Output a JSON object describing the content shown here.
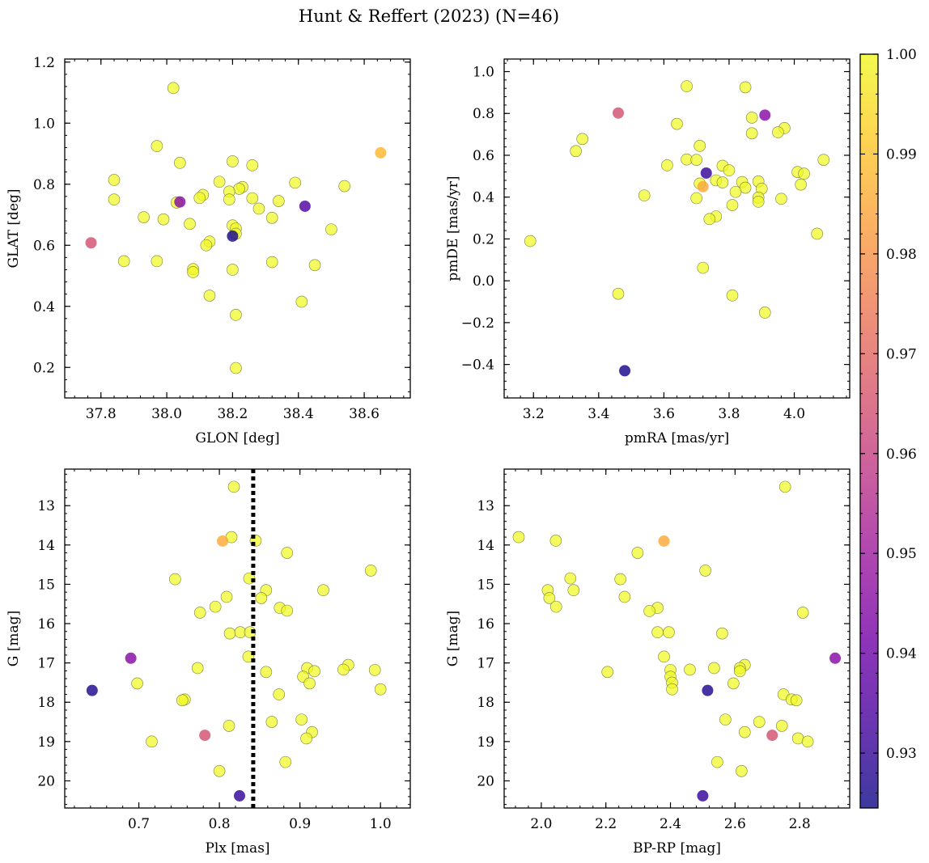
{
  "figure": {
    "title": "Hunt & Reffert (2023) (N=46)"
  },
  "colorbar": {
    "min": 0.9245,
    "max": 1.0,
    "ticks": [
      0.93,
      0.94,
      0.95,
      0.96,
      0.97,
      0.98,
      0.99,
      1.0
    ],
    "tick_labels": [
      "0.93",
      "0.94",
      "0.95",
      "0.96",
      "0.97",
      "0.98",
      "0.99",
      "1.00"
    ],
    "colormap": "plasma",
    "colors": [
      "#0d0887",
      "#46039f",
      "#7201a8",
      "#9c179e",
      "#bd3786",
      "#d8576b",
      "#ed7953",
      "#fb9f3a",
      "#fdca26",
      "#f0f921"
    ]
  },
  "chart_data": [
    {
      "type": "scatter",
      "name": "glon-glat",
      "xlabel": "GLON [deg]",
      "ylabel": "GLAT [deg]",
      "xlim": [
        37.69,
        38.74
      ],
      "ylim": [
        0.1,
        1.21
      ],
      "invert_y": false,
      "xticks": [
        37.8,
        38.0,
        38.2,
        38.4,
        38.6
      ],
      "xtick_labels": [
        "37.8",
        "38.0",
        "38.2",
        "38.4",
        "38.6"
      ],
      "yticks": [
        0.2,
        0.4,
        0.6,
        0.8,
        1.0,
        1.2
      ],
      "ytick_labels": [
        "0.2",
        "0.4",
        "0.6",
        "0.8",
        "1.0",
        "1.2"
      ],
      "points": [
        {
          "x": 38.02,
          "y": 1.115,
          "c": 1.0
        },
        {
          "x": 37.97,
          "y": 0.925,
          "c": 1.0
        },
        {
          "x": 38.04,
          "y": 0.87,
          "c": 1.0
        },
        {
          "x": 38.2,
          "y": 0.875,
          "c": 1.0
        },
        {
          "x": 38.26,
          "y": 0.862,
          "c": 1.0
        },
        {
          "x": 37.84,
          "y": 0.814,
          "c": 1.0
        },
        {
          "x": 38.16,
          "y": 0.808,
          "c": 1.0
        },
        {
          "x": 38.39,
          "y": 0.805,
          "c": 1.0
        },
        {
          "x": 38.54,
          "y": 0.794,
          "c": 1.0
        },
        {
          "x": 38.23,
          "y": 0.791,
          "c": 1.0
        },
        {
          "x": 38.22,
          "y": 0.785,
          "c": 1.0
        },
        {
          "x": 38.19,
          "y": 0.776,
          "c": 1.0
        },
        {
          "x": 38.11,
          "y": 0.765,
          "c": 1.0
        },
        {
          "x": 38.1,
          "y": 0.755,
          "c": 1.0
        },
        {
          "x": 38.26,
          "y": 0.754,
          "c": 1.0
        },
        {
          "x": 38.19,
          "y": 0.75,
          "c": 1.0
        },
        {
          "x": 37.84,
          "y": 0.75,
          "c": 1.0
        },
        {
          "x": 38.34,
          "y": 0.745,
          "c": 1.0
        },
        {
          "x": 38.03,
          "y": 0.74,
          "c": 1.0
        },
        {
          "x": 38.28,
          "y": 0.72,
          "c": 1.0
        },
        {
          "x": 37.93,
          "y": 0.692,
          "c": 1.0
        },
        {
          "x": 38.32,
          "y": 0.69,
          "c": 1.0
        },
        {
          "x": 37.99,
          "y": 0.685,
          "c": 1.0
        },
        {
          "x": 38.07,
          "y": 0.67,
          "c": 1.0
        },
        {
          "x": 38.2,
          "y": 0.665,
          "c": 1.0
        },
        {
          "x": 38.21,
          "y": 0.655,
          "c": 1.0
        },
        {
          "x": 38.5,
          "y": 0.652,
          "c": 1.0
        },
        {
          "x": 38.21,
          "y": 0.638,
          "c": 1.0
        },
        {
          "x": 38.13,
          "y": 0.612,
          "c": 1.0
        },
        {
          "x": 38.12,
          "y": 0.6,
          "c": 1.0
        },
        {
          "x": 37.87,
          "y": 0.548,
          "c": 1.0
        },
        {
          "x": 37.97,
          "y": 0.548,
          "c": 1.0
        },
        {
          "x": 38.32,
          "y": 0.545,
          "c": 1.0
        },
        {
          "x": 38.45,
          "y": 0.535,
          "c": 1.0
        },
        {
          "x": 38.08,
          "y": 0.522,
          "c": 1.0
        },
        {
          "x": 38.2,
          "y": 0.52,
          "c": 1.0
        },
        {
          "x": 38.08,
          "y": 0.512,
          "c": 1.0
        },
        {
          "x": 38.13,
          "y": 0.435,
          "c": 1.0
        },
        {
          "x": 38.41,
          "y": 0.415,
          "c": 1.0
        },
        {
          "x": 38.21,
          "y": 0.372,
          "c": 1.0
        },
        {
          "x": 38.21,
          "y": 0.198,
          "c": 1.0
        },
        {
          "x": 38.65,
          "y": 0.903,
          "c": 0.988
        },
        {
          "x": 37.77,
          "y": 0.608,
          "c": 0.965
        },
        {
          "x": 38.04,
          "y": 0.742,
          "c": 0.945
        },
        {
          "x": 38.42,
          "y": 0.728,
          "c": 0.935
        },
        {
          "x": 38.2,
          "y": 0.63,
          "c": 0.926
        }
      ]
    },
    {
      "type": "scatter",
      "name": "pmra-pmde",
      "xlabel": "pmRA [mas/yr]",
      "ylabel": "pmDE [mas/yr]",
      "xlim": [
        3.11,
        4.17
      ],
      "ylim": [
        -0.56,
        1.06
      ],
      "invert_y": false,
      "xticks": [
        3.2,
        3.4,
        3.6,
        3.8,
        4.0
      ],
      "xtick_labels": [
        "3.2",
        "3.4",
        "3.6",
        "3.8",
        "4.0"
      ],
      "yticks": [
        -0.4,
        -0.2,
        0.0,
        0.2,
        0.4,
        0.6,
        0.8,
        1.0
      ],
      "ytick_labels": [
        "−0.4",
        "−0.2",
        "0.0",
        "0.2",
        "0.4",
        "0.6",
        "0.8",
        "1.0"
      ],
      "points": [
        {
          "x": 3.67,
          "y": 0.93,
          "c": 1.0
        },
        {
          "x": 3.85,
          "y": 0.925,
          "c": 1.0
        },
        {
          "x": 3.87,
          "y": 0.78,
          "c": 1.0
        },
        {
          "x": 3.64,
          "y": 0.75,
          "c": 1.0
        },
        {
          "x": 3.97,
          "y": 0.73,
          "c": 1.0
        },
        {
          "x": 3.95,
          "y": 0.71,
          "c": 1.0
        },
        {
          "x": 3.87,
          "y": 0.705,
          "c": 1.0
        },
        {
          "x": 3.35,
          "y": 0.678,
          "c": 1.0
        },
        {
          "x": 3.71,
          "y": 0.645,
          "c": 1.0
        },
        {
          "x": 3.33,
          "y": 0.62,
          "c": 1.0
        },
        {
          "x": 3.67,
          "y": 0.58,
          "c": 1.0
        },
        {
          "x": 3.7,
          "y": 0.578,
          "c": 1.0
        },
        {
          "x": 4.09,
          "y": 0.578,
          "c": 1.0
        },
        {
          "x": 3.61,
          "y": 0.552,
          "c": 1.0
        },
        {
          "x": 3.78,
          "y": 0.55,
          "c": 1.0
        },
        {
          "x": 3.8,
          "y": 0.528,
          "c": 1.0
        },
        {
          "x": 4.01,
          "y": 0.52,
          "c": 1.0
        },
        {
          "x": 4.03,
          "y": 0.512,
          "c": 1.0
        },
        {
          "x": 3.76,
          "y": 0.48,
          "c": 1.0
        },
        {
          "x": 3.89,
          "y": 0.475,
          "c": 1.0
        },
        {
          "x": 3.84,
          "y": 0.472,
          "c": 1.0
        },
        {
          "x": 3.78,
          "y": 0.47,
          "c": 1.0
        },
        {
          "x": 3.71,
          "y": 0.465,
          "c": 1.0
        },
        {
          "x": 4.02,
          "y": 0.46,
          "c": 1.0
        },
        {
          "x": 3.85,
          "y": 0.445,
          "c": 1.0
        },
        {
          "x": 3.9,
          "y": 0.44,
          "c": 1.0
        },
        {
          "x": 3.82,
          "y": 0.425,
          "c": 1.0
        },
        {
          "x": 3.54,
          "y": 0.408,
          "c": 1.0
        },
        {
          "x": 3.89,
          "y": 0.398,
          "c": 1.0
        },
        {
          "x": 3.7,
          "y": 0.395,
          "c": 1.0
        },
        {
          "x": 3.96,
          "y": 0.392,
          "c": 1.0
        },
        {
          "x": 3.89,
          "y": 0.378,
          "c": 1.0
        },
        {
          "x": 3.81,
          "y": 0.362,
          "c": 1.0
        },
        {
          "x": 3.76,
          "y": 0.308,
          "c": 1.0
        },
        {
          "x": 3.74,
          "y": 0.295,
          "c": 1.0
        },
        {
          "x": 4.07,
          "y": 0.225,
          "c": 1.0
        },
        {
          "x": 3.19,
          "y": 0.19,
          "c": 1.0
        },
        {
          "x": 3.72,
          "y": 0.062,
          "c": 1.0
        },
        {
          "x": 3.46,
          "y": -0.062,
          "c": 1.0
        },
        {
          "x": 3.81,
          "y": -0.07,
          "c": 1.0
        },
        {
          "x": 3.91,
          "y": -0.152,
          "c": 1.0
        },
        {
          "x": 3.72,
          "y": 0.45,
          "c": 0.985
        },
        {
          "x": 3.46,
          "y": 0.802,
          "c": 0.965
        },
        {
          "x": 3.91,
          "y": 0.792,
          "c": 0.945
        },
        {
          "x": 3.73,
          "y": 0.515,
          "c": 0.93
        },
        {
          "x": 3.48,
          "y": -0.43,
          "c": 0.926
        }
      ]
    },
    {
      "type": "scatter",
      "name": "plx-g",
      "xlabel": "Plx [mas]",
      "ylabel": "G [mag]",
      "xlim": [
        0.608,
        1.037
      ],
      "ylim": [
        20.69,
        12.07
      ],
      "invert_y": true,
      "vline": {
        "x": 0.842,
        "style": "dotted"
      },
      "xticks": [
        0.7,
        0.8,
        0.9,
        1.0
      ],
      "xtick_labels": [
        "0.7",
        "0.8",
        "0.9",
        "1.0"
      ],
      "yticks": [
        13,
        14,
        15,
        16,
        17,
        18,
        19,
        20
      ],
      "ytick_labels": [
        "13",
        "14",
        "15",
        "16",
        "17",
        "18",
        "19",
        "20"
      ],
      "points": [
        {
          "x": 0.818,
          "y": 12.52,
          "c": 1.0
        },
        {
          "x": 0.815,
          "y": 13.8,
          "c": 1.0
        },
        {
          "x": 0.845,
          "y": 13.89,
          "c": 1.0
        },
        {
          "x": 0.884,
          "y": 14.2,
          "c": 1.0
        },
        {
          "x": 0.988,
          "y": 14.65,
          "c": 1.0
        },
        {
          "x": 0.745,
          "y": 14.87,
          "c": 1.0
        },
        {
          "x": 0.837,
          "y": 14.85,
          "c": 1.0
        },
        {
          "x": 0.929,
          "y": 15.15,
          "c": 1.0
        },
        {
          "x": 0.858,
          "y": 15.15,
          "c": 1.0
        },
        {
          "x": 0.852,
          "y": 15.35,
          "c": 1.0
        },
        {
          "x": 0.809,
          "y": 15.32,
          "c": 1.0
        },
        {
          "x": 0.795,
          "y": 15.57,
          "c": 1.0
        },
        {
          "x": 0.875,
          "y": 15.6,
          "c": 1.0
        },
        {
          "x": 0.884,
          "y": 15.67,
          "c": 1.0
        },
        {
          "x": 0.776,
          "y": 15.72,
          "c": 1.0
        },
        {
          "x": 0.813,
          "y": 16.25,
          "c": 1.0
        },
        {
          "x": 0.826,
          "y": 16.22,
          "c": 1.0
        },
        {
          "x": 0.838,
          "y": 16.22,
          "c": 1.0
        },
        {
          "x": 0.836,
          "y": 16.84,
          "c": 1.0
        },
        {
          "x": 0.96,
          "y": 17.05,
          "c": 1.0
        },
        {
          "x": 0.909,
          "y": 17.13,
          "c": 1.0
        },
        {
          "x": 0.773,
          "y": 17.13,
          "c": 1.0
        },
        {
          "x": 0.954,
          "y": 17.17,
          "c": 1.0
        },
        {
          "x": 0.993,
          "y": 17.18,
          "c": 1.0
        },
        {
          "x": 0.918,
          "y": 17.21,
          "c": 1.0
        },
        {
          "x": 0.858,
          "y": 17.23,
          "c": 1.0
        },
        {
          "x": 0.904,
          "y": 17.35,
          "c": 1.0
        },
        {
          "x": 0.698,
          "y": 17.52,
          "c": 1.0
        },
        {
          "x": 0.912,
          "y": 17.52,
          "c": 1.0
        },
        {
          "x": 1.0,
          "y": 17.67,
          "c": 1.0
        },
        {
          "x": 0.874,
          "y": 17.8,
          "c": 1.0
        },
        {
          "x": 0.757,
          "y": 17.93,
          "c": 1.0
        },
        {
          "x": 0.754,
          "y": 17.95,
          "c": 1.0
        },
        {
          "x": 0.902,
          "y": 18.44,
          "c": 1.0
        },
        {
          "x": 0.865,
          "y": 18.5,
          "c": 1.0
        },
        {
          "x": 0.812,
          "y": 18.6,
          "c": 1.0
        },
        {
          "x": 0.915,
          "y": 18.76,
          "c": 1.0
        },
        {
          "x": 0.908,
          "y": 18.92,
          "c": 1.0
        },
        {
          "x": 0.716,
          "y": 19.0,
          "c": 1.0
        },
        {
          "x": 0.882,
          "y": 19.52,
          "c": 1.0
        },
        {
          "x": 0.8,
          "y": 19.75,
          "c": 1.0
        },
        {
          "x": 0.804,
          "y": 13.9,
          "c": 0.985
        },
        {
          "x": 0.782,
          "y": 18.84,
          "c": 0.965
        },
        {
          "x": 0.69,
          "y": 16.88,
          "c": 0.945
        },
        {
          "x": 0.642,
          "y": 17.7,
          "c": 0.927
        },
        {
          "x": 0.825,
          "y": 20.38,
          "c": 0.93
        }
      ]
    },
    {
      "type": "scatter",
      "name": "bprp-g",
      "xlabel": "BP-RP [mag]",
      "ylabel": "G [mag]",
      "xlim": [
        1.885,
        2.955
      ],
      "ylim": [
        20.69,
        12.07
      ],
      "invert_y": true,
      "xticks": [
        2.0,
        2.2,
        2.4,
        2.6,
        2.8
      ],
      "xtick_labels": [
        "2.0",
        "2.2",
        "2.4",
        "2.6",
        "2.8"
      ],
      "yticks": [
        13,
        14,
        15,
        16,
        17,
        18,
        19,
        20
      ],
      "ytick_labels": [
        "13",
        "14",
        "15",
        "16",
        "17",
        "18",
        "19",
        "20"
      ],
      "points": [
        {
          "x": 2.755,
          "y": 12.52,
          "c": 1.0
        },
        {
          "x": 1.93,
          "y": 13.8,
          "c": 1.0
        },
        {
          "x": 2.045,
          "y": 13.89,
          "c": 1.0
        },
        {
          "x": 2.298,
          "y": 14.2,
          "c": 1.0
        },
        {
          "x": 2.508,
          "y": 14.65,
          "c": 1.0
        },
        {
          "x": 2.09,
          "y": 14.85,
          "c": 1.0
        },
        {
          "x": 2.245,
          "y": 14.87,
          "c": 1.0
        },
        {
          "x": 2.02,
          "y": 15.15,
          "c": 1.0
        },
        {
          "x": 2.1,
          "y": 15.15,
          "c": 1.0
        },
        {
          "x": 2.258,
          "y": 15.32,
          "c": 1.0
        },
        {
          "x": 2.025,
          "y": 15.35,
          "c": 1.0
        },
        {
          "x": 2.046,
          "y": 15.57,
          "c": 1.0
        },
        {
          "x": 2.36,
          "y": 15.6,
          "c": 1.0
        },
        {
          "x": 2.335,
          "y": 15.68,
          "c": 1.0
        },
        {
          "x": 2.81,
          "y": 15.72,
          "c": 1.0
        },
        {
          "x": 2.36,
          "y": 16.22,
          "c": 1.0
        },
        {
          "x": 2.395,
          "y": 16.22,
          "c": 1.0
        },
        {
          "x": 2.56,
          "y": 16.25,
          "c": 1.0
        },
        {
          "x": 2.38,
          "y": 16.84,
          "c": 1.0
        },
        {
          "x": 2.63,
          "y": 17.05,
          "c": 1.0
        },
        {
          "x": 2.615,
          "y": 17.13,
          "c": 1.0
        },
        {
          "x": 2.535,
          "y": 17.13,
          "c": 1.0
        },
        {
          "x": 2.46,
          "y": 17.17,
          "c": 1.0
        },
        {
          "x": 2.4,
          "y": 17.18,
          "c": 1.0
        },
        {
          "x": 2.615,
          "y": 17.21,
          "c": 1.0
        },
        {
          "x": 2.205,
          "y": 17.23,
          "c": 1.0
        },
        {
          "x": 2.4,
          "y": 17.35,
          "c": 1.0
        },
        {
          "x": 2.405,
          "y": 17.5,
          "c": 1.0
        },
        {
          "x": 2.595,
          "y": 17.52,
          "c": 1.0
        },
        {
          "x": 2.405,
          "y": 17.67,
          "c": 1.0
        },
        {
          "x": 2.75,
          "y": 17.8,
          "c": 1.0
        },
        {
          "x": 2.775,
          "y": 17.93,
          "c": 1.0
        },
        {
          "x": 2.79,
          "y": 17.95,
          "c": 1.0
        },
        {
          "x": 2.57,
          "y": 18.44,
          "c": 1.0
        },
        {
          "x": 2.675,
          "y": 18.5,
          "c": 1.0
        },
        {
          "x": 2.745,
          "y": 18.6,
          "c": 1.0
        },
        {
          "x": 2.63,
          "y": 18.76,
          "c": 1.0
        },
        {
          "x": 2.795,
          "y": 18.92,
          "c": 1.0
        },
        {
          "x": 2.825,
          "y": 19.0,
          "c": 1.0
        },
        {
          "x": 2.545,
          "y": 19.52,
          "c": 1.0
        },
        {
          "x": 2.62,
          "y": 19.75,
          "c": 1.0
        },
        {
          "x": 2.38,
          "y": 13.9,
          "c": 0.985
        },
        {
          "x": 2.715,
          "y": 18.84,
          "c": 0.965
        },
        {
          "x": 2.91,
          "y": 16.88,
          "c": 0.945
        },
        {
          "x": 2.515,
          "y": 17.7,
          "c": 0.927
        },
        {
          "x": 2.5,
          "y": 20.38,
          "c": 0.93
        }
      ]
    }
  ]
}
